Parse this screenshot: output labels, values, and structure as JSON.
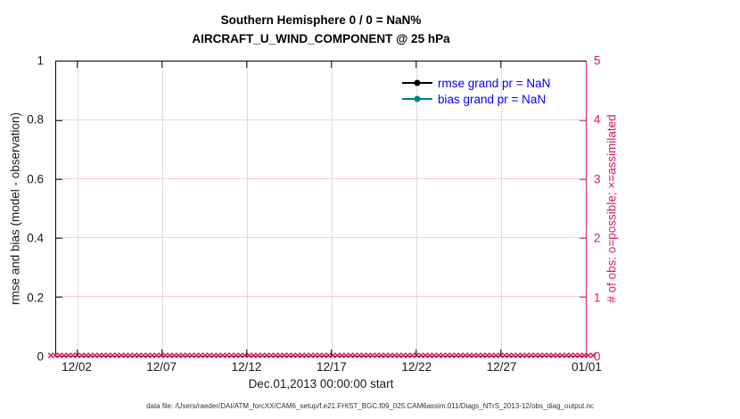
{
  "title": {
    "line1": "Southern Hemisphere 0 / 0 = NaN%",
    "line2": "AIRCRAFT_U_WIND_COMPONENT @ 25 hPa"
  },
  "axes": {
    "ylabel_left": "rmse and bias (model - observation)",
    "ylabel_right": "# of obs: o=possible; ×=assimilated",
    "xlabel": "Dec.01,2013 00:00:00 start",
    "left_ticks": [
      "0",
      "0.2",
      "0.4",
      "0.6",
      "0.8",
      "1"
    ],
    "right_ticks": [
      "0",
      "1",
      "2",
      "3",
      "4",
      "5"
    ],
    "x_ticks": [
      "12/02",
      "12/07",
      "12/12",
      "12/17",
      "12/22",
      "12/27",
      "01/01"
    ]
  },
  "legend": {
    "rmse_label": "rmse grand pr = NaN",
    "bias_label": "bias grand pr = NaN"
  },
  "footer": {
    "text": "data file: /Users/raeder/DAI/ATM_forcXX/CAM6_setup/f.e21.FHIST_BGC.f09_025.CAM6assim.011/Diags_NTrS_2013-12/obs_diag_output.nc"
  },
  "colors": {
    "accent": "#d61960",
    "bias": "#008080",
    "rmse": "#000000",
    "legend_text": "#0000ff",
    "grid_gray": "#dcdcdc",
    "grid_pink": "#f6cddd"
  },
  "chart_data": {
    "type": "line",
    "title": "Southern Hemisphere 0 / 0 = NaN% — AIRCRAFT_U_WIND_COMPONENT @ 25 hPa",
    "xlabel": "Dec.01,2013 00:00:00 start",
    "ylabel_left": "rmse and bias (model - observation)",
    "ylabel_right": "# of obs: o=possible; ×=assimilated",
    "ylim_left": [
      0,
      1
    ],
    "ylim_right": [
      0,
      5
    ],
    "x_range": [
      "2013-12-01 00:00",
      "2014-01-01 00:00"
    ],
    "x_tick_labels": [
      "12/02",
      "12/07",
      "12/12",
      "12/17",
      "12/22",
      "12/27",
      "01/01"
    ],
    "grid": true,
    "legend_position": "top-right-inside",
    "series": [
      {
        "name": "rmse",
        "legend": "rmse grand pr = NaN",
        "color": "#000000",
        "marker": "filled-circle",
        "values_constant": null,
        "note": "all values NaN, no line drawn"
      },
      {
        "name": "bias",
        "legend": "bias grand pr = NaN",
        "color": "#008080",
        "marker": "filled-circle",
        "values_constant": null,
        "note": "all values NaN, no line drawn"
      },
      {
        "name": "obs_possible",
        "axis": "right",
        "marker": "o",
        "color": "#d61960",
        "values_constant": 0
      },
      {
        "name": "obs_assimilated",
        "axis": "right",
        "marker": "×",
        "color": "#d61960",
        "values_constant": 0
      }
    ],
    "n_obs_markers": 124,
    "assimilated_marker_glyph": "×"
  }
}
